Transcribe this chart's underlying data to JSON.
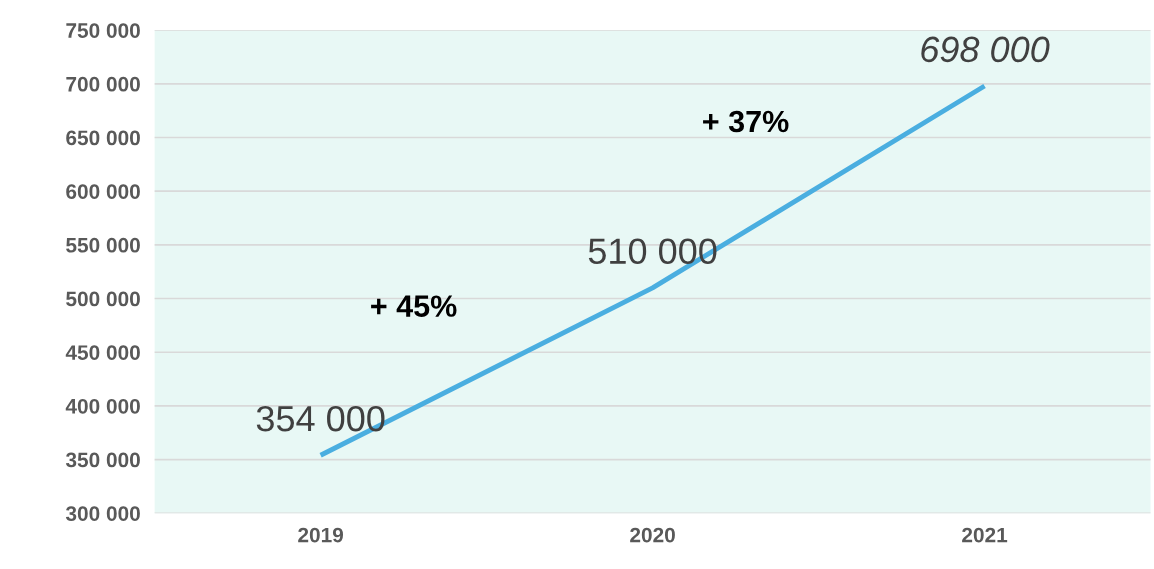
{
  "chart_data": {
    "type": "line",
    "categories": [
      "2019",
      "2020",
      "2021"
    ],
    "values": [
      354000,
      510000,
      698000
    ],
    "value_labels": [
      "354 000",
      "510 000",
      "698 000"
    ],
    "color": "#4aaee0",
    "annotations": [
      "+ 45%",
      "+ 37%"
    ],
    "ylim": [
      300000,
      750000
    ],
    "yticks": [
      {
        "value": 300000,
        "label": "300 000"
      },
      {
        "value": 350000,
        "label": "350 000"
      },
      {
        "value": 400000,
        "label": "400 000"
      },
      {
        "value": 450000,
        "label": "450 000"
      },
      {
        "value": 500000,
        "label": "500 000"
      },
      {
        "value": 550000,
        "label": "550 000"
      },
      {
        "value": 600000,
        "label": "600 000"
      },
      {
        "value": 650000,
        "label": "650 000"
      },
      {
        "value": 700000,
        "label": "700 000"
      },
      {
        "value": 750000,
        "label": "750 000"
      }
    ],
    "grid": "y",
    "legend": false,
    "marker": "none",
    "line_style": "solid"
  }
}
